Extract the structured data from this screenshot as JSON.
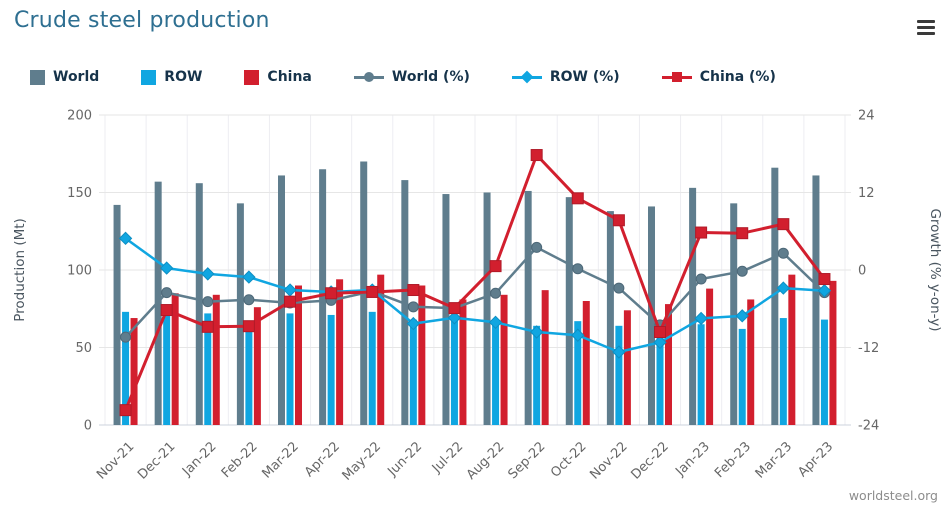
{
  "header": {
    "title": "Crude steel production",
    "menu_icon": "hamburger-icon"
  },
  "footer": {
    "credit": "worldsteel.org"
  },
  "colors": {
    "world": "#5f7d8d",
    "row": "#10a6e1",
    "china": "#d21f2e",
    "world_edge": "#4d6878",
    "row_edge": "#0e8ec2",
    "china_edge": "#b01a28",
    "title": "#2e6f91",
    "legend_text": "#16334a",
    "axis_text": "#666666",
    "axis_title_text": "#4a5660",
    "grid": "#e6e6e6",
    "vgrid": "#ededf2",
    "axis_line": "#ccd3dd"
  },
  "chart_data": {
    "type": "bar+line combo (dual axis)",
    "title": "Crude steel production",
    "categories": [
      "Nov-21",
      "Dec-21",
      "Jan-22",
      "Feb-22",
      "Mar-22",
      "Apr-22",
      "May-22",
      "Jun-22",
      "Jul-22",
      "Aug-22",
      "Sep-22",
      "Oct-22",
      "Nov-22",
      "Dec-22",
      "Jan-23",
      "Feb-23",
      "Mar-23",
      "Apr-23"
    ],
    "bar_series": [
      {
        "name": "World",
        "color": "#5f7d8d",
        "axis": "left",
        "values": [
          142,
          157,
          156,
          143,
          161,
          165,
          170,
          158,
          149,
          150,
          151,
          147,
          138,
          141,
          153,
          143,
          166,
          161
        ]
      },
      {
        "name": "ROW",
        "color": "#10a6e1",
        "axis": "left",
        "values": [
          73,
          72,
          72,
          67,
          72,
          71,
          73,
          68,
          68,
          66,
          64,
          67,
          64,
          63,
          65,
          62,
          69,
          68
        ]
      },
      {
        "name": "China",
        "color": "#d21f2e",
        "axis": "left",
        "values": [
          69,
          85,
          84,
          76,
          90,
          94,
          97,
          90,
          81,
          84,
          87,
          80,
          74,
          78,
          88,
          81,
          97,
          93
        ]
      }
    ],
    "line_series": [
      {
        "name": "World (%)",
        "color": "#5f7d8d",
        "marker": "circle",
        "axis": "right",
        "values": [
          -10.4,
          -3.5,
          -4.9,
          -4.6,
          -5.1,
          -4.7,
          -3.3,
          -5.7,
          -5.9,
          -3.6,
          3.5,
          0.2,
          -2.8,
          -8.5,
          -1.4,
          -0.2,
          2.6,
          -3.5
        ]
      },
      {
        "name": "ROW (%)",
        "color": "#10a6e1",
        "marker": "diamond",
        "axis": "right",
        "values": [
          4.9,
          0.3,
          -0.6,
          -1.1,
          -3.1,
          -3.4,
          -3.1,
          -8.3,
          -7.4,
          -8.1,
          -9.6,
          -10.1,
          -12.7,
          -11.2,
          -7.5,
          -7.1,
          -2.8,
          -3.2
        ]
      },
      {
        "name": "China (%)",
        "color": "#d21f2e",
        "marker": "square",
        "axis": "right",
        "values": [
          -21.7,
          -6.2,
          -8.8,
          -8.7,
          -4.9,
          -3.6,
          -3.4,
          -3.1,
          -5.9,
          0.6,
          17.8,
          11.1,
          7.7,
          -9.6,
          5.8,
          5.7,
          7.1,
          -1.4
        ]
      }
    ],
    "left_axis": {
      "title": "Production (Mt)",
      "min": 0,
      "max": 200,
      "ticks": [
        0,
        50,
        100,
        150,
        200
      ]
    },
    "right_axis": {
      "title": "Growth (% y-on-y)",
      "min": -24,
      "max": 24,
      "ticks": [
        -24,
        -12,
        0,
        12,
        24
      ]
    },
    "legend": [
      {
        "label": "World",
        "type": "bar",
        "color": "#5f7d8d"
      },
      {
        "label": "ROW",
        "type": "bar",
        "color": "#10a6e1"
      },
      {
        "label": "China",
        "type": "bar",
        "color": "#d21f2e"
      },
      {
        "label": "World (%)",
        "type": "line",
        "marker": "circle",
        "color": "#5f7d8d"
      },
      {
        "label": "ROW (%)",
        "type": "line",
        "marker": "diamond",
        "color": "#10a6e1"
      },
      {
        "label": "China (%)",
        "type": "line",
        "marker": "square",
        "color": "#d21f2e"
      }
    ],
    "grid": true,
    "legend_position": "top"
  }
}
